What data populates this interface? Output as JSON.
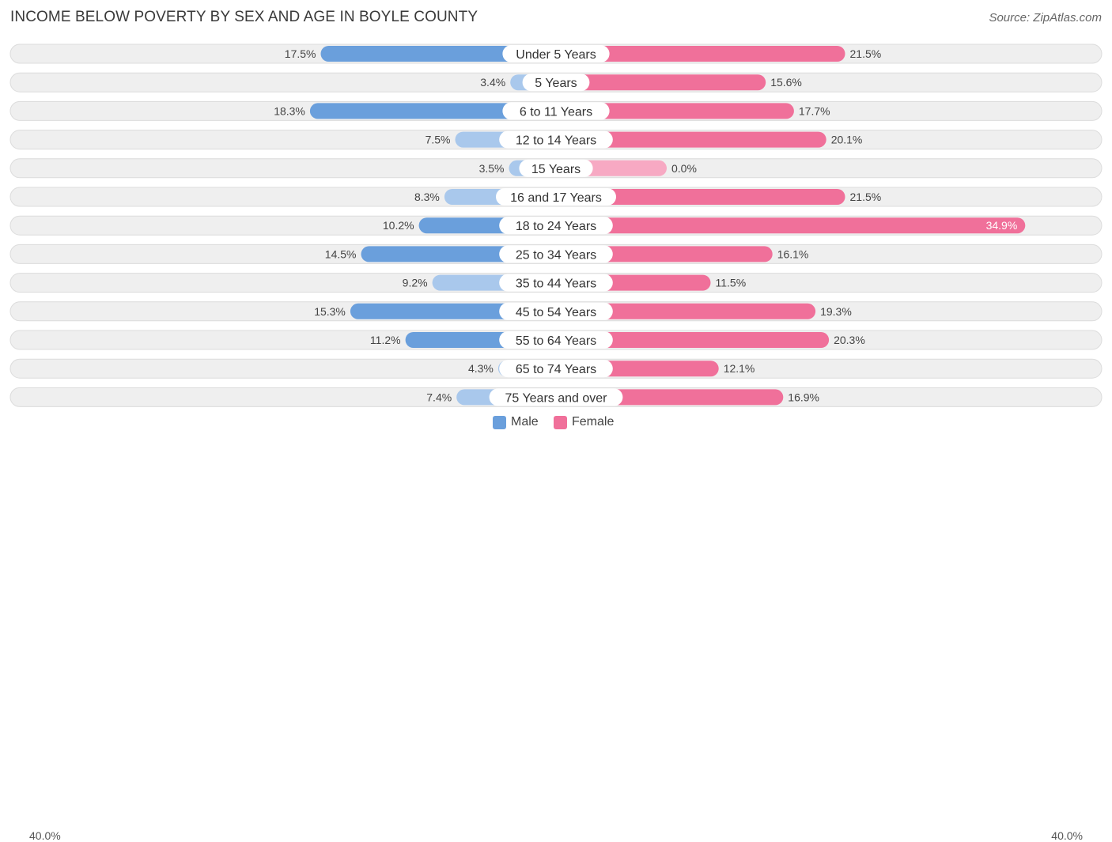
{
  "header": {
    "title": "INCOME BELOW POVERTY BY SEX AND AGE IN BOYLE COUNTY",
    "source": "Source: ZipAtlas.com"
  },
  "colors": {
    "male_strong": "#6a9fdc",
    "male_light": "#a9c8ec",
    "female_strong": "#f0709a",
    "female_light": "#f7a9c3",
    "row_bg": "#efefef",
    "row_border": "#dcdcdc"
  },
  "chart_data": {
    "type": "bar",
    "orientation": "horizontal-diverging",
    "title": "INCOME BELOW POVERTY BY SEX AND AGE IN BOYLE COUNTY",
    "categories": [
      "Under 5 Years",
      "5 Years",
      "6 to 11 Years",
      "12 to 14 Years",
      "15 Years",
      "16 and 17 Years",
      "18 to 24 Years",
      "25 to 34 Years",
      "35 to 44 Years",
      "45 to 54 Years",
      "55 to 64 Years",
      "65 to 74 Years",
      "75 Years and over"
    ],
    "series": [
      {
        "name": "Male",
        "values": [
          17.5,
          3.4,
          18.3,
          7.5,
          3.5,
          8.3,
          10.2,
          14.5,
          9.2,
          15.3,
          11.2,
          4.3,
          7.4
        ],
        "labels": [
          "17.5%",
          "3.4%",
          "18.3%",
          "7.5%",
          "3.5%",
          "8.3%",
          "10.2%",
          "14.5%",
          "9.2%",
          "15.3%",
          "11.2%",
          "4.3%",
          "7.4%"
        ]
      },
      {
        "name": "Female",
        "values": [
          21.5,
          15.6,
          17.7,
          20.1,
          0.0,
          21.5,
          34.9,
          16.1,
          11.5,
          19.3,
          20.3,
          12.1,
          16.9
        ],
        "labels": [
          "21.5%",
          "15.6%",
          "17.7%",
          "20.1%",
          "0.0%",
          "21.5%",
          "34.9%",
          "16.1%",
          "11.5%",
          "19.3%",
          "20.3%",
          "12.1%",
          "16.9%"
        ]
      }
    ],
    "axis_max": 40.0,
    "axis_left_label": "40.0%",
    "axis_right_label": "40.0%",
    "legend_position": "bottom-center"
  }
}
